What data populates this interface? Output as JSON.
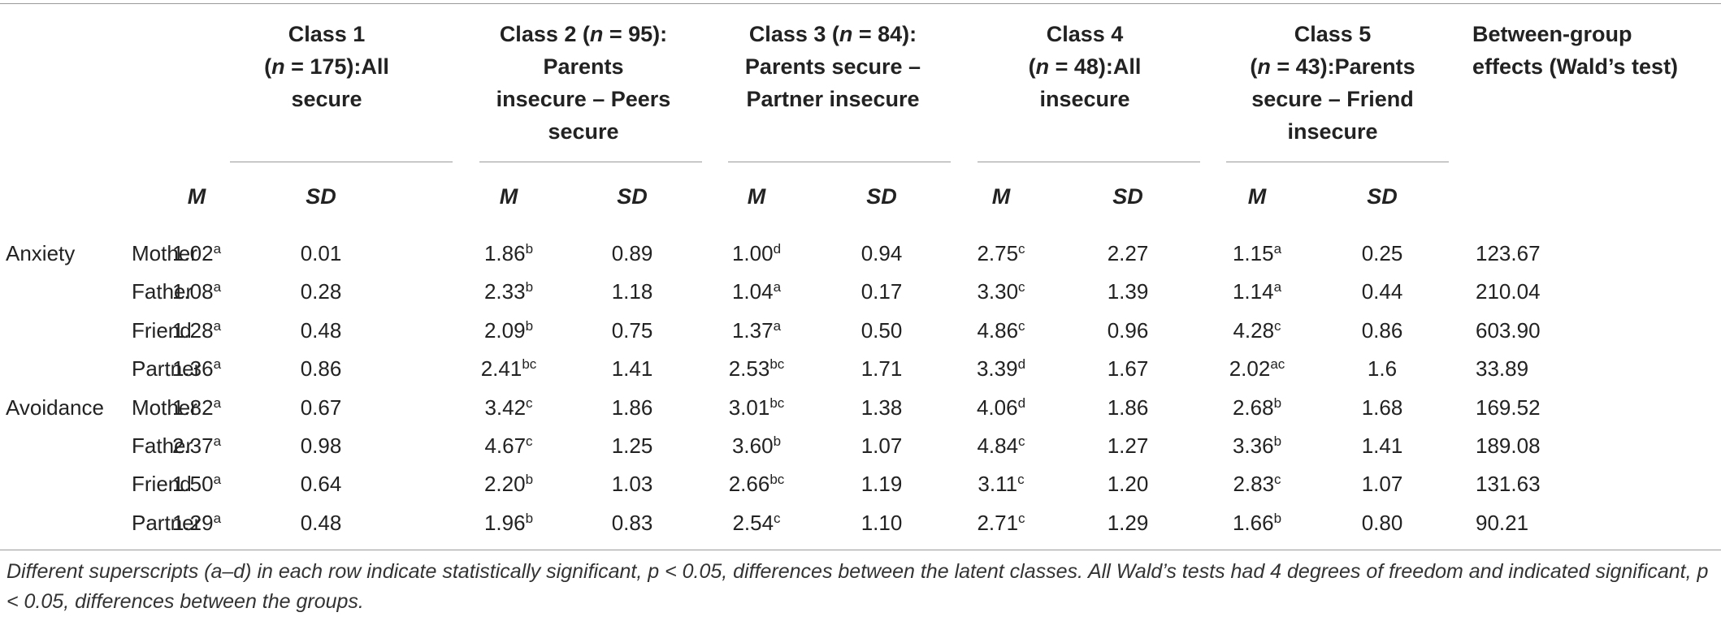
{
  "header": {
    "groups": [
      {
        "lines": [
          [
            {
              "t": "Class 1",
              "i": false
            }
          ],
          [
            {
              "t": "(",
              "i": false
            },
            {
              "t": "n",
              "i": true
            },
            {
              "t": " = 175):All",
              "i": false
            }
          ],
          [
            {
              "t": "secure",
              "i": false
            }
          ]
        ]
      },
      {
        "lines": [
          [
            {
              "t": "Class 2 (",
              "i": false
            },
            {
              "t": "n",
              "i": true
            },
            {
              "t": " = 95):",
              "i": false
            }
          ],
          [
            {
              "t": "Parents",
              "i": false
            }
          ],
          [
            {
              "t": "insecure – Peers",
              "i": false
            }
          ],
          [
            {
              "t": "secure",
              "i": false
            }
          ]
        ]
      },
      {
        "lines": [
          [
            {
              "t": "Class 3 (",
              "i": false
            },
            {
              "t": "n",
              "i": true
            },
            {
              "t": " = 84):",
              "i": false
            }
          ],
          [
            {
              "t": "Parents secure –",
              "i": false
            }
          ],
          [
            {
              "t": "Partner insecure",
              "i": false
            }
          ]
        ]
      },
      {
        "lines": [
          [
            {
              "t": "Class 4",
              "i": false
            }
          ],
          [
            {
              "t": "(",
              "i": false
            },
            {
              "t": "n",
              "i": true
            },
            {
              "t": " = 48):All",
              "i": false
            }
          ],
          [
            {
              "t": "insecure",
              "i": false
            }
          ]
        ]
      },
      {
        "lines": [
          [
            {
              "t": "Class 5",
              "i": false
            }
          ],
          [
            {
              "t": "(",
              "i": false
            },
            {
              "t": "n",
              "i": true
            },
            {
              "t": " = 43):Parents",
              "i": false
            }
          ],
          [
            {
              "t": "secure – Friend",
              "i": false
            }
          ],
          [
            {
              "t": "insecure",
              "i": false
            }
          ]
        ]
      }
    ],
    "between_group": [
      "Between-group",
      "effects (Wald’s test)"
    ],
    "m_label": "M",
    "sd_label": "SD"
  },
  "rows": [
    {
      "group": "Anxiety",
      "figure": "Mother",
      "cells": [
        {
          "v": "1.02",
          "s": "a"
        },
        {
          "v": "0.01",
          "s": ""
        },
        {
          "v": "1.86",
          "s": "b"
        },
        {
          "v": "0.89",
          "s": ""
        },
        {
          "v": "1.00",
          "s": "d"
        },
        {
          "v": "0.94",
          "s": ""
        },
        {
          "v": "2.75",
          "s": "c"
        },
        {
          "v": "2.27",
          "s": ""
        },
        {
          "v": "1.15",
          "s": "a"
        },
        {
          "v": "0.25",
          "s": ""
        }
      ],
      "wald": "123.67"
    },
    {
      "group": "",
      "figure": "Father",
      "cells": [
        {
          "v": "1.08",
          "s": "a"
        },
        {
          "v": "0.28",
          "s": ""
        },
        {
          "v": "2.33",
          "s": "b"
        },
        {
          "v": "1.18",
          "s": ""
        },
        {
          "v": "1.04",
          "s": "a"
        },
        {
          "v": "0.17",
          "s": ""
        },
        {
          "v": "3.30",
          "s": "c"
        },
        {
          "v": "1.39",
          "s": ""
        },
        {
          "v": "1.14",
          "s": "a"
        },
        {
          "v": "0.44",
          "s": ""
        }
      ],
      "wald": "210.04"
    },
    {
      "group": "",
      "figure": "Friend",
      "cells": [
        {
          "v": "1.28",
          "s": "a"
        },
        {
          "v": "0.48",
          "s": ""
        },
        {
          "v": "2.09",
          "s": "b"
        },
        {
          "v": "0.75",
          "s": ""
        },
        {
          "v": "1.37",
          "s": "a"
        },
        {
          "v": "0.50",
          "s": ""
        },
        {
          "v": "4.86",
          "s": "c"
        },
        {
          "v": "0.96",
          "s": ""
        },
        {
          "v": "4.28",
          "s": "c"
        },
        {
          "v": "0.86",
          "s": ""
        }
      ],
      "wald": "603.90"
    },
    {
      "group": "",
      "figure": "Partner",
      "cells": [
        {
          "v": "1.36",
          "s": "a"
        },
        {
          "v": "0.86",
          "s": ""
        },
        {
          "v": "2.41",
          "s": "bc"
        },
        {
          "v": "1.41",
          "s": ""
        },
        {
          "v": "2.53",
          "s": "bc"
        },
        {
          "v": "1.71",
          "s": ""
        },
        {
          "v": "3.39",
          "s": "d"
        },
        {
          "v": "1.67",
          "s": ""
        },
        {
          "v": "2.02",
          "s": "ac"
        },
        {
          "v": "1.6",
          "s": ""
        }
      ],
      "wald": "33.89"
    },
    {
      "group": "Avoidance",
      "figure": "Mother",
      "cells": [
        {
          "v": "1.82",
          "s": "a"
        },
        {
          "v": "0.67",
          "s": ""
        },
        {
          "v": "3.42",
          "s": "c"
        },
        {
          "v": "1.86",
          "s": ""
        },
        {
          "v": "3.01",
          "s": "bc"
        },
        {
          "v": "1.38",
          "s": ""
        },
        {
          "v": "4.06",
          "s": "d"
        },
        {
          "v": "1.86",
          "s": ""
        },
        {
          "v": "2.68",
          "s": "b"
        },
        {
          "v": "1.68",
          "s": ""
        }
      ],
      "wald": "169.52"
    },
    {
      "group": "",
      "figure": "Father",
      "cells": [
        {
          "v": "2.37",
          "s": "a"
        },
        {
          "v": "0.98",
          "s": ""
        },
        {
          "v": "4.67",
          "s": "c"
        },
        {
          "v": "1.25",
          "s": ""
        },
        {
          "v": "3.60",
          "s": "b"
        },
        {
          "v": "1.07",
          "s": ""
        },
        {
          "v": "4.84",
          "s": "c"
        },
        {
          "v": "1.27",
          "s": ""
        },
        {
          "v": "3.36",
          "s": "b"
        },
        {
          "v": "1.41",
          "s": ""
        }
      ],
      "wald": "189.08"
    },
    {
      "group": "",
      "figure": "Friend",
      "cells": [
        {
          "v": "1.50",
          "s": "a"
        },
        {
          "v": "0.64",
          "s": ""
        },
        {
          "v": "2.20",
          "s": "b"
        },
        {
          "v": "1.03",
          "s": ""
        },
        {
          "v": "2.66",
          "s": "bc"
        },
        {
          "v": "1.19",
          "s": ""
        },
        {
          "v": "3.11",
          "s": "c"
        },
        {
          "v": "1.20",
          "s": ""
        },
        {
          "v": "2.83",
          "s": "c"
        },
        {
          "v": "1.07",
          "s": ""
        }
      ],
      "wald": "131.63"
    },
    {
      "group": "",
      "figure": "Partner",
      "cells": [
        {
          "v": "1.29",
          "s": "a"
        },
        {
          "v": "0.48",
          "s": ""
        },
        {
          "v": "1.96",
          "s": "b"
        },
        {
          "v": "0.83",
          "s": ""
        },
        {
          "v": "2.54",
          "s": "c"
        },
        {
          "v": "1.10",
          "s": ""
        },
        {
          "v": "2.71",
          "s": "c"
        },
        {
          "v": "1.29",
          "s": ""
        },
        {
          "v": "1.66",
          "s": "b"
        },
        {
          "v": "0.80",
          "s": ""
        }
      ],
      "wald": "90.21"
    }
  ],
  "footnote": "Different superscripts (a–d) in each row indicate statistically significant, p < 0.05, differences between the latent classes. All Wald’s tests had 4 degrees of freedom and indicated significant, p < 0.05, differences between the groups."
}
